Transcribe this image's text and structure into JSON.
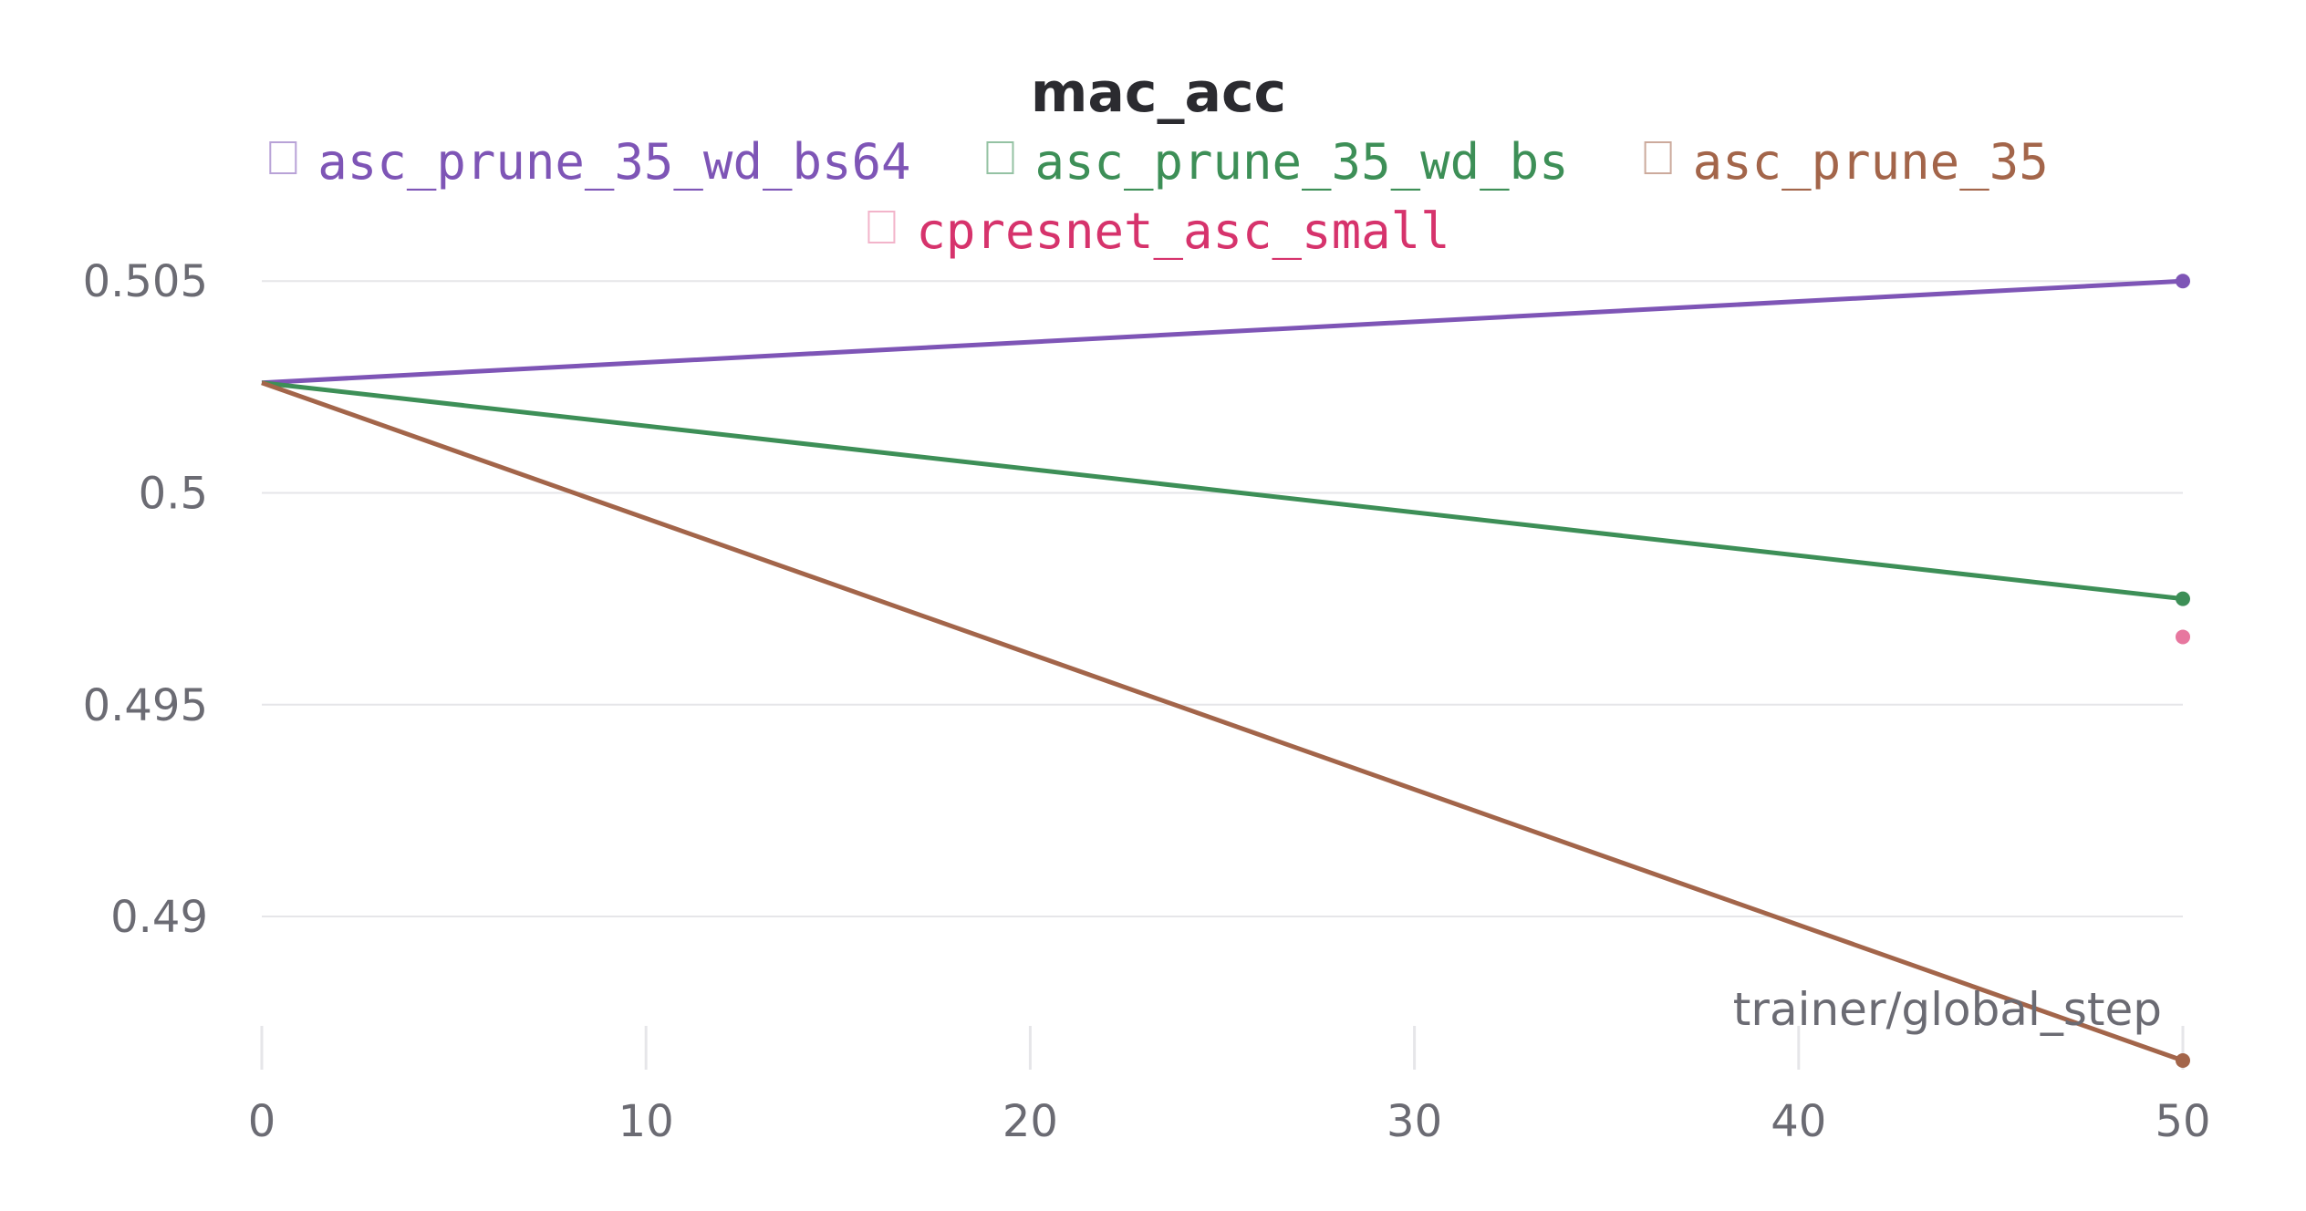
{
  "chart_data": {
    "type": "line",
    "title": "mac_acc",
    "xlabel": "trainer/global_step",
    "ylabel": "",
    "xlim": [
      0,
      50
    ],
    "ylim": [
      0.4866,
      0.5055
    ],
    "x_ticks": [
      0,
      10,
      20,
      30,
      40,
      50
    ],
    "y_ticks": [
      0.49,
      0.495,
      0.5,
      0.505
    ],
    "y_tick_labels": [
      "0.49",
      "0.495",
      "0.5",
      "0.505"
    ],
    "grid": "horizontal",
    "legend_position": "top",
    "series": [
      {
        "name": "asc_prune_35_wd_bs64",
        "color": "#7e55b6",
        "x": [
          0,
          50
        ],
        "y": [
          0.5026,
          0.505
        ]
      },
      {
        "name": "asc_prune_35_wd_bs",
        "color": "#3d8f57",
        "x": [
          0,
          50
        ],
        "y": [
          0.5026,
          0.4975
        ]
      },
      {
        "name": "asc_prune_35",
        "color": "#a3654a",
        "x": [
          0,
          50
        ],
        "y": [
          0.5026,
          0.4866
        ]
      },
      {
        "name": "cpresnet_asc_small",
        "color": "#d6336c",
        "marker_color": "#e7779f",
        "x": [
          50
        ],
        "y": [
          0.4966
        ]
      }
    ]
  }
}
